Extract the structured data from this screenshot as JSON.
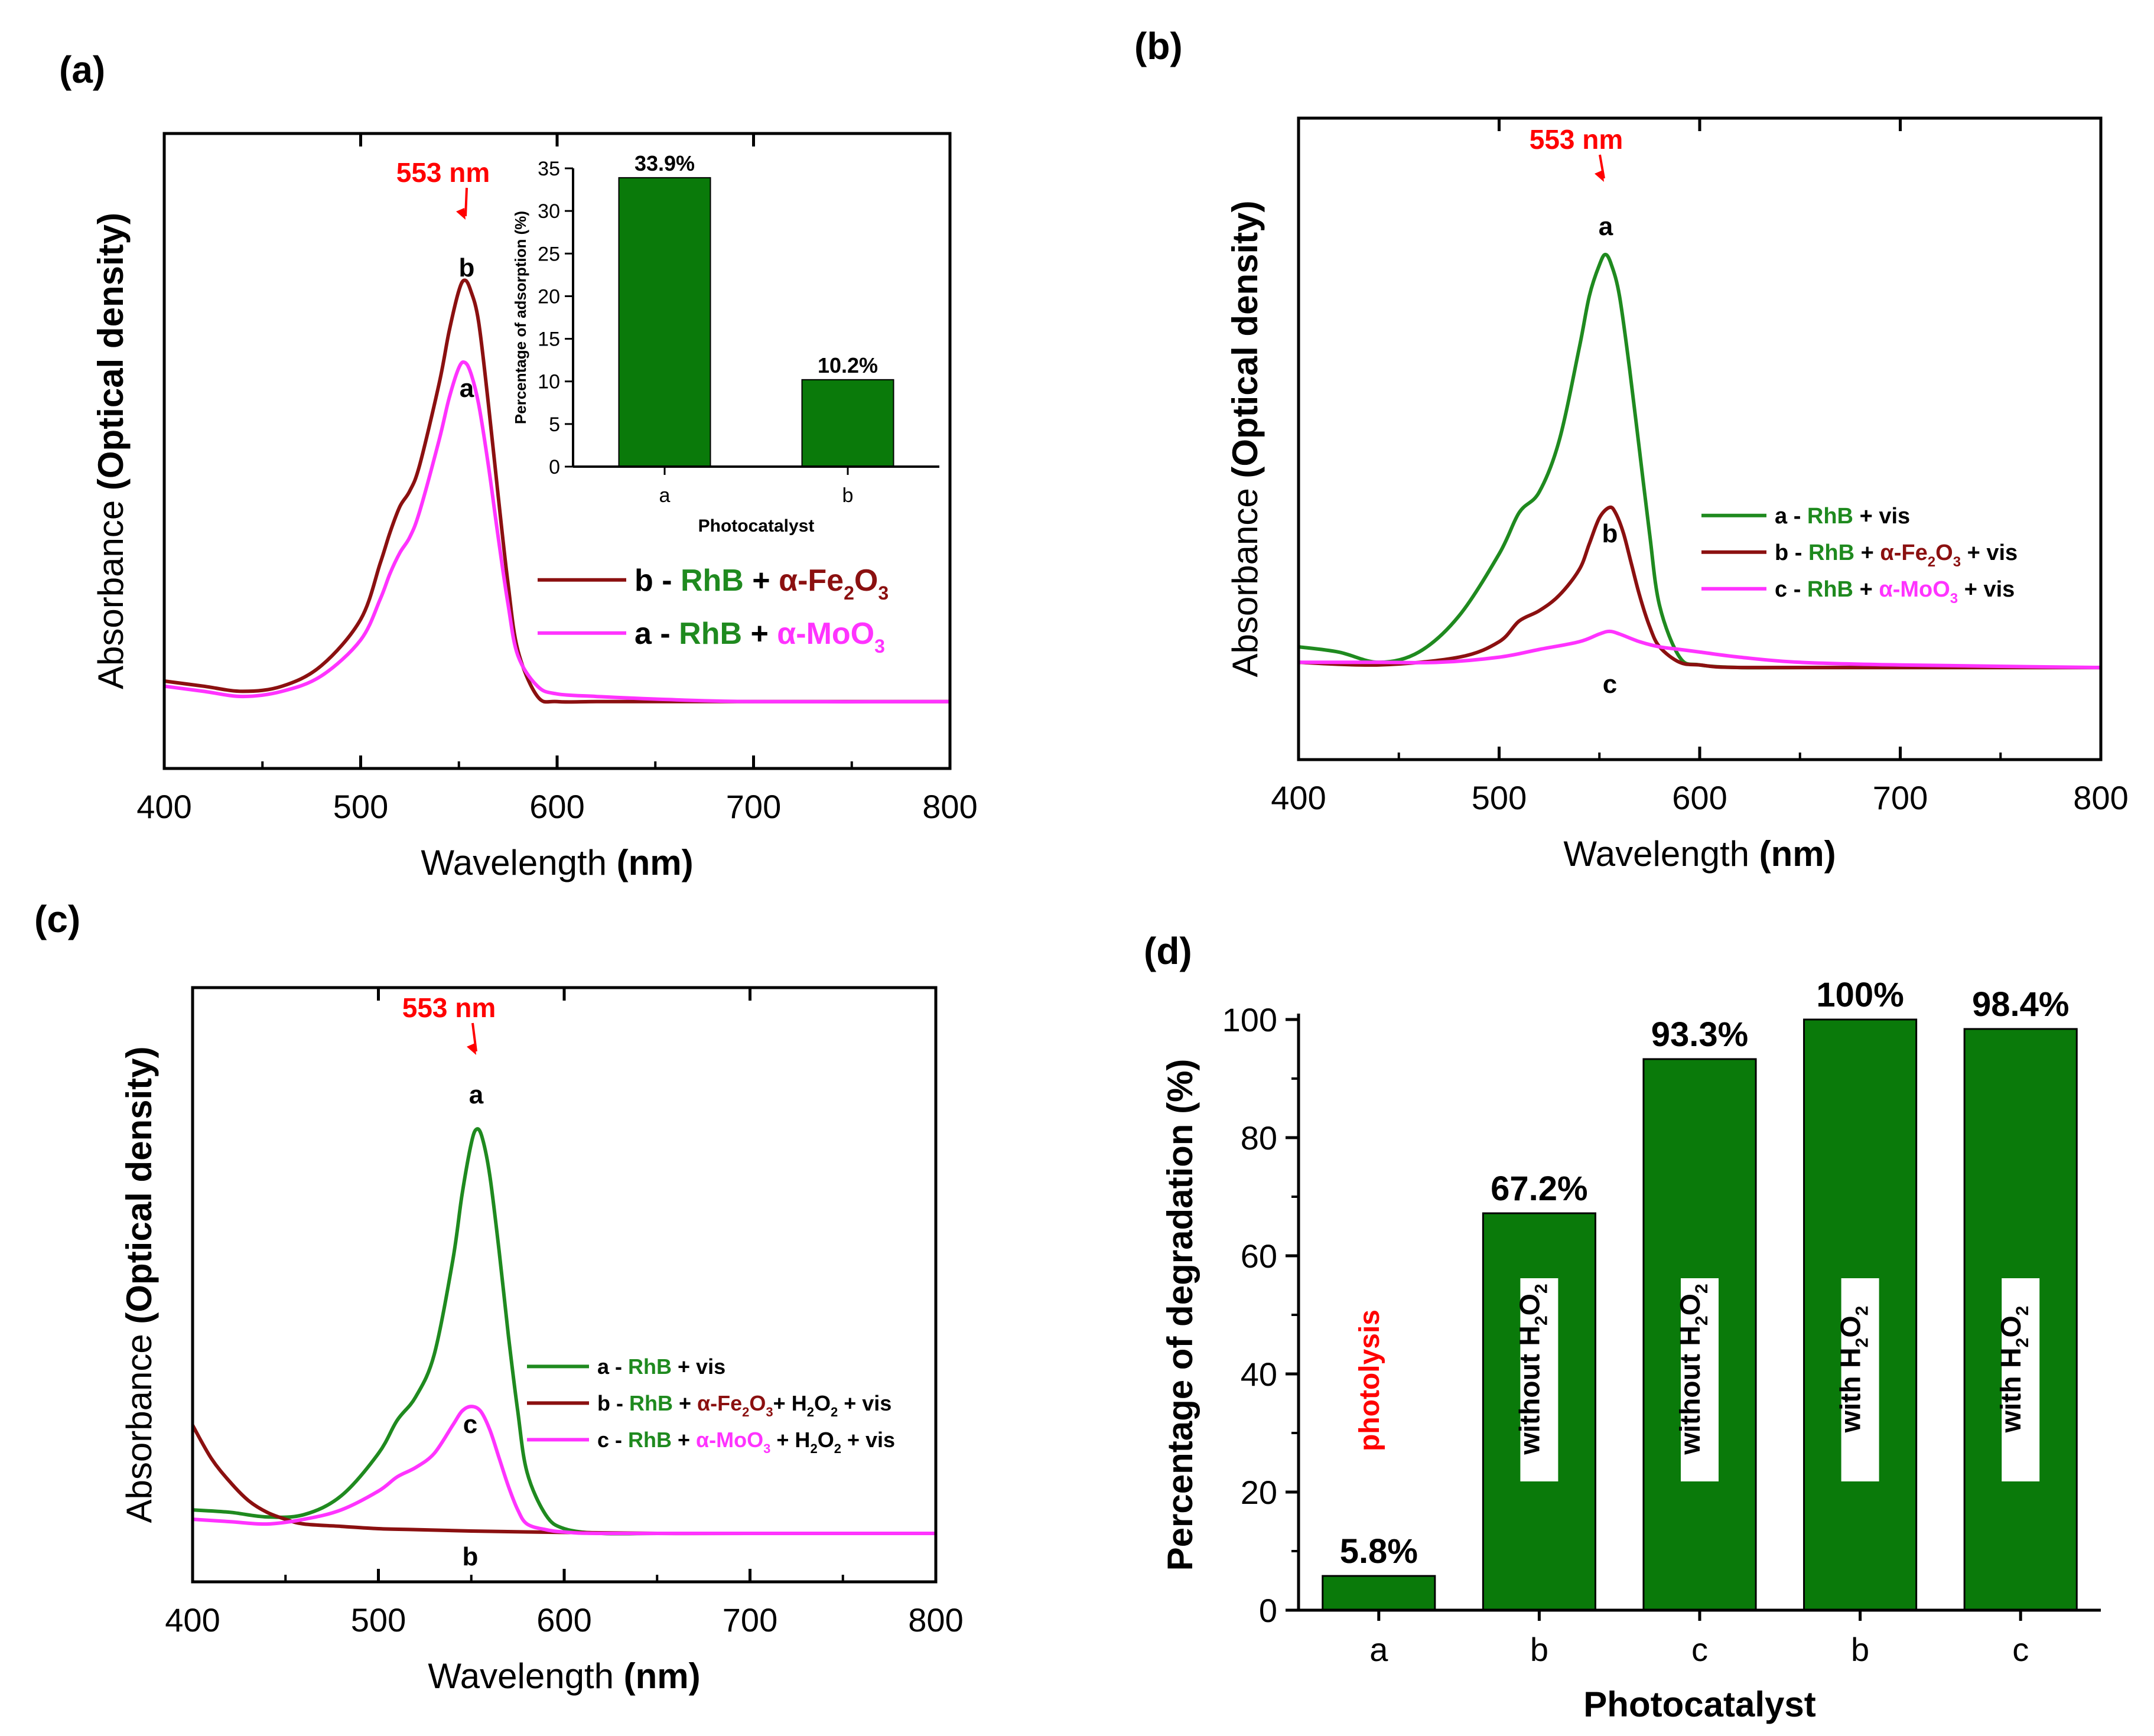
{
  "colors": {
    "green": "#1f8a1f",
    "dark_red": "#8b1010",
    "magenta": "#ff33ff",
    "bar_green": "#0a7a0a",
    "annotation_red": "#ff0000"
  },
  "chart_data": [
    {
      "panel": "(a)",
      "type": "line",
      "xlabel_prefix": "Wavelength ",
      "xlabel_unit": "(nm)",
      "ylabel_prefix": "Absorbance ",
      "ylabel_bold": "(Optical density)",
      "xlim": [
        400,
        800
      ],
      "ylim": [
        0,
        1.0
      ],
      "xticks": [
        400,
        500,
        600,
        700,
        800
      ],
      "peak_label": "553 nm",
      "peak_x": 553,
      "series": [
        {
          "name": "b",
          "color": "#8b1010",
          "x": [
            400,
            420,
            440,
            460,
            480,
            500,
            510,
            515,
            520,
            525,
            530,
            540,
            545,
            550,
            553,
            556,
            560,
            565,
            570,
            575,
            580,
            590,
            600,
            620,
            650,
            700,
            800
          ],
          "y": [
            0.1,
            0.09,
            0.08,
            0.09,
            0.13,
            0.22,
            0.33,
            0.39,
            0.44,
            0.47,
            0.52,
            0.68,
            0.78,
            0.86,
            0.88,
            0.86,
            0.8,
            0.64,
            0.46,
            0.29,
            0.16,
            0.07,
            0.06,
            0.06,
            0.06,
            0.06,
            0.06
          ],
          "curve_label": "b"
        },
        {
          "name": "a",
          "color": "#ff33ff",
          "x": [
            400,
            420,
            440,
            460,
            480,
            500,
            510,
            515,
            520,
            525,
            530,
            540,
            545,
            550,
            553,
            556,
            560,
            565,
            570,
            575,
            580,
            590,
            600,
            620,
            650,
            700,
            800
          ],
          "y": [
            0.09,
            0.08,
            0.07,
            0.08,
            0.11,
            0.18,
            0.26,
            0.31,
            0.35,
            0.38,
            0.43,
            0.57,
            0.65,
            0.71,
            0.72,
            0.7,
            0.64,
            0.52,
            0.38,
            0.25,
            0.15,
            0.09,
            0.075,
            0.07,
            0.065,
            0.06,
            0.06
          ],
          "curve_label": "a"
        }
      ],
      "legend": [
        {
          "series": "b",
          "color": "#8b1010",
          "parts": [
            {
              "t": "b - ",
              "c": "#000000"
            },
            {
              "t": "RhB",
              "c": "#1f8a1f"
            },
            {
              "t": " + ",
              "c": "#000000"
            },
            {
              "t": "α-Fe",
              "c": "#8b1010"
            },
            {
              "t": "2",
              "c": "#8b1010",
              "sub": true
            },
            {
              "t": "O",
              "c": "#8b1010"
            },
            {
              "t": "3",
              "c": "#8b1010",
              "sub": true
            }
          ]
        },
        {
          "series": "a",
          "color": "#ff33ff",
          "parts": [
            {
              "t": "a - ",
              "c": "#000000"
            },
            {
              "t": "RhB",
              "c": "#1f8a1f"
            },
            {
              "t": " + ",
              "c": "#000000"
            },
            {
              "t": "α-MoO",
              "c": "#ff33ff"
            },
            {
              "t": "3",
              "c": "#ff33ff",
              "sub": true
            }
          ]
        }
      ],
      "inset": {
        "type": "bar",
        "categories": [
          "a",
          "b"
        ],
        "values": [
          33.9,
          10.2
        ],
        "data_labels": [
          "33.9%",
          "10.2%"
        ],
        "ylim": [
          0,
          35
        ],
        "yticks": [
          0,
          5,
          10,
          15,
          20,
          25,
          30,
          35
        ],
        "xlabel": "Photocatalyst",
        "ylabel": "Percentage of adsorption (%)"
      }
    },
    {
      "panel": "(b)",
      "type": "line",
      "xlabel_prefix": "Wavelength ",
      "xlabel_unit": "(nm)",
      "ylabel_prefix": "Absorbance ",
      "ylabel_bold": "(Optical density)",
      "xlim": [
        400,
        800
      ],
      "ylim": [
        0,
        1.0
      ],
      "xticks": [
        400,
        500,
        600,
        700,
        800
      ],
      "peak_label": "553 nm",
      "peak_x": 553,
      "series": [
        {
          "name": "a",
          "color": "#1f8a1f",
          "x": [
            400,
            420,
            440,
            460,
            480,
            500,
            510,
            520,
            530,
            540,
            545,
            550,
            553,
            556,
            560,
            565,
            570,
            575,
            580,
            590,
            600,
            620,
            650,
            700,
            800
          ],
          "y": [
            0.12,
            0.11,
            0.09,
            0.11,
            0.18,
            0.3,
            0.38,
            0.42,
            0.52,
            0.7,
            0.8,
            0.86,
            0.88,
            0.86,
            0.8,
            0.66,
            0.5,
            0.34,
            0.2,
            0.1,
            0.085,
            0.08,
            0.08,
            0.08,
            0.08
          ],
          "curve_label": "a"
        },
        {
          "name": "b",
          "color": "#8b1010",
          "x": [
            400,
            440,
            480,
            500,
            510,
            520,
            530,
            540,
            545,
            550,
            555,
            558,
            562,
            566,
            570,
            575,
            580,
            590,
            600,
            620,
            700,
            800
          ],
          "y": [
            0.09,
            0.085,
            0.1,
            0.13,
            0.17,
            0.19,
            0.22,
            0.27,
            0.32,
            0.37,
            0.39,
            0.38,
            0.34,
            0.28,
            0.22,
            0.16,
            0.12,
            0.09,
            0.085,
            0.08,
            0.08,
            0.08
          ],
          "curve_label": "b"
        },
        {
          "name": "c",
          "color": "#ff33ff",
          "x": [
            400,
            440,
            470,
            500,
            520,
            540,
            550,
            555,
            560,
            570,
            580,
            590,
            600,
            620,
            650,
            700,
            800
          ],
          "y": [
            0.09,
            0.09,
            0.09,
            0.1,
            0.115,
            0.13,
            0.145,
            0.15,
            0.145,
            0.13,
            0.12,
            0.115,
            0.11,
            0.1,
            0.09,
            0.085,
            0.08
          ],
          "curve_label": "c"
        }
      ],
      "legend": [
        {
          "series": "a",
          "color": "#1f8a1f",
          "parts": [
            {
              "t": "a - ",
              "c": "#000000"
            },
            {
              "t": "RhB",
              "c": "#1f8a1f"
            },
            {
              "t": " + vis",
              "c": "#000000"
            }
          ]
        },
        {
          "series": "b",
          "color": "#8b1010",
          "parts": [
            {
              "t": "b - ",
              "c": "#000000"
            },
            {
              "t": "RhB",
              "c": "#1f8a1f"
            },
            {
              "t": " + ",
              "c": "#000000"
            },
            {
              "t": "α-Fe",
              "c": "#8b1010"
            },
            {
              "t": "2",
              "c": "#8b1010",
              "sub": true
            },
            {
              "t": "O",
              "c": "#8b1010"
            },
            {
              "t": "3",
              "c": "#8b1010",
              "sub": true
            },
            {
              "t": " + vis",
              "c": "#000000"
            }
          ]
        },
        {
          "series": "c",
          "color": "#ff33ff",
          "parts": [
            {
              "t": "c - ",
              "c": "#000000"
            },
            {
              "t": "RhB",
              "c": "#1f8a1f"
            },
            {
              "t": " + ",
              "c": "#000000"
            },
            {
              "t": "α-MoO",
              "c": "#ff33ff"
            },
            {
              "t": "3",
              "c": "#ff33ff",
              "sub": true
            },
            {
              "t": " + vis",
              "c": "#000000"
            }
          ]
        }
      ]
    },
    {
      "panel": "(c)",
      "type": "line",
      "xlabel_prefix": "Wavelength ",
      "xlabel_unit": "(nm)",
      "ylabel_prefix": "Absorbance ",
      "ylabel_bold": "(Optical density)",
      "xlim": [
        400,
        800
      ],
      "ylim": [
        0,
        1.0
      ],
      "xticks": [
        400,
        500,
        600,
        700,
        800
      ],
      "peak_label": "553 nm",
      "peak_x": 553,
      "series": [
        {
          "name": "a",
          "color": "#1f8a1f",
          "x": [
            400,
            420,
            440,
            460,
            480,
            500,
            510,
            520,
            530,
            540,
            545,
            550,
            553,
            556,
            560,
            565,
            570,
            575,
            580,
            590,
            600,
            620,
            650,
            700,
            800
          ],
          "y": [
            0.05,
            0.045,
            0.035,
            0.04,
            0.08,
            0.17,
            0.24,
            0.29,
            0.38,
            0.58,
            0.72,
            0.83,
            0.86,
            0.84,
            0.76,
            0.6,
            0.42,
            0.26,
            0.13,
            0.04,
            0.01,
            0.0,
            0.0,
            0.0,
            0.0
          ],
          "curve_label": "a"
        },
        {
          "name": "b",
          "color": "#8b1010",
          "x": [
            400,
            410,
            420,
            430,
            440,
            450,
            460,
            480,
            500,
            520,
            550,
            600,
            650,
            700,
            800
          ],
          "y": [
            0.23,
            0.16,
            0.11,
            0.07,
            0.045,
            0.03,
            0.02,
            0.015,
            0.01,
            0.008,
            0.005,
            0.002,
            0.0,
            0.0,
            0.0
          ],
          "curve_label": "b"
        },
        {
          "name": "c",
          "color": "#ff33ff",
          "x": [
            400,
            420,
            440,
            460,
            480,
            500,
            510,
            520,
            530,
            540,
            545,
            550,
            555,
            560,
            565,
            570,
            575,
            580,
            590,
            600,
            620,
            700,
            800
          ],
          "y": [
            0.03,
            0.025,
            0.02,
            0.03,
            0.05,
            0.09,
            0.12,
            0.14,
            0.17,
            0.23,
            0.26,
            0.27,
            0.26,
            0.22,
            0.16,
            0.1,
            0.05,
            0.02,
            0.008,
            0.003,
            0.0,
            0.0,
            0.0
          ],
          "curve_label": "c"
        }
      ],
      "legend": [
        {
          "series": "a",
          "color": "#1f8a1f",
          "parts": [
            {
              "t": "a - ",
              "c": "#000000"
            },
            {
              "t": "RhB",
              "c": "#1f8a1f"
            },
            {
              "t": " + vis",
              "c": "#000000"
            }
          ]
        },
        {
          "series": "b",
          "color": "#8b1010",
          "parts": [
            {
              "t": "b - ",
              "c": "#000000"
            },
            {
              "t": "RhB",
              "c": "#1f8a1f"
            },
            {
              "t": " + ",
              "c": "#000000"
            },
            {
              "t": "α-Fe",
              "c": "#8b1010"
            },
            {
              "t": "2",
              "c": "#8b1010",
              "sub": true
            },
            {
              "t": "O",
              "c": "#8b1010"
            },
            {
              "t": "3",
              "c": "#8b1010",
              "sub": true
            },
            {
              "t": "+ H",
              "c": "#000000"
            },
            {
              "t": "2",
              "c": "#000000",
              "sub": true
            },
            {
              "t": "O",
              "c": "#000000"
            },
            {
              "t": "2",
              "c": "#000000",
              "sub": true
            },
            {
              "t": " + vis",
              "c": "#000000"
            }
          ]
        },
        {
          "series": "c",
          "color": "#ff33ff",
          "parts": [
            {
              "t": "c - ",
              "c": "#000000"
            },
            {
              "t": "RhB",
              "c": "#1f8a1f"
            },
            {
              "t": " + ",
              "c": "#000000"
            },
            {
              "t": "α-MoO",
              "c": "#ff33ff"
            },
            {
              "t": "3",
              "c": "#ff33ff",
              "sub": true
            },
            {
              "t": " + H",
              "c": "#000000"
            },
            {
              "t": "2",
              "c": "#000000",
              "sub": true
            },
            {
              "t": "O",
              "c": "#000000"
            },
            {
              "t": "2",
              "c": "#000000",
              "sub": true
            },
            {
              "t": " + vis",
              "c": "#000000"
            }
          ]
        }
      ]
    },
    {
      "panel": "(d)",
      "type": "bar",
      "categories": [
        "a",
        "b",
        "c",
        "b",
        "c"
      ],
      "values": [
        5.8,
        67.2,
        93.3,
        100,
        98.4
      ],
      "data_labels": [
        "5.8%",
        "67.2%",
        "93.3%",
        "100%",
        "98.4%"
      ],
      "bar_annotations": [
        {
          "parts": [
            {
              "t": "photolysis",
              "c": "#ff0000"
            }
          ],
          "boxed": false
        },
        {
          "parts": [
            {
              "t": "without H",
              "c": "#000000"
            },
            {
              "t": "2",
              "c": "#000000",
              "sub": true
            },
            {
              "t": "O",
              "c": "#000000"
            },
            {
              "t": "2",
              "c": "#000000",
              "sub": true
            }
          ],
          "boxed": true
        },
        {
          "parts": [
            {
              "t": "without H",
              "c": "#000000"
            },
            {
              "t": "2",
              "c": "#000000",
              "sub": true
            },
            {
              "t": "O",
              "c": "#000000"
            },
            {
              "t": "2",
              "c": "#000000",
              "sub": true
            }
          ],
          "boxed": true
        },
        {
          "parts": [
            {
              "t": "with H",
              "c": "#000000"
            },
            {
              "t": "2",
              "c": "#000000",
              "sub": true
            },
            {
              "t": "O",
              "c": "#000000"
            },
            {
              "t": "2",
              "c": "#000000",
              "sub": true
            }
          ],
          "boxed": true
        },
        {
          "parts": [
            {
              "t": "with H",
              "c": "#000000"
            },
            {
              "t": "2",
              "c": "#000000",
              "sub": true
            },
            {
              "t": "O",
              "c": "#000000"
            },
            {
              "t": "2",
              "c": "#000000",
              "sub": true
            }
          ],
          "boxed": true
        }
      ],
      "ylim": [
        0,
        100
      ],
      "yticks": [
        0,
        20,
        40,
        60,
        80,
        100
      ],
      "xlabel": "Photocatalyst",
      "ylabel": "Percentage of degradation (%)"
    }
  ]
}
